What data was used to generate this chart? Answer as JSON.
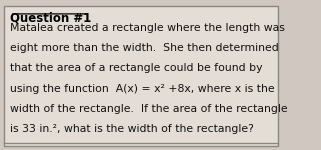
{
  "title": "Question #1",
  "lines": [
    "Matalea created a rectangle where the length was",
    "eight more than the width.  She then determined",
    "that the area of a rectangle could be found by",
    "using the function  A(x) = x² +8x, where x is the",
    "width of the rectangle.  If the area of the rectangle",
    "is 33 in.², what is the width of the rectangle?"
  ],
  "bg_color": "#d0c8c0",
  "box_color": "#e4ddd6",
  "border_color": "#888880",
  "title_color": "#000000",
  "text_color": "#111111",
  "title_fontsize": 8.5,
  "text_fontsize": 7.8,
  "figsize": [
    3.21,
    1.5
  ],
  "dpi": 100
}
